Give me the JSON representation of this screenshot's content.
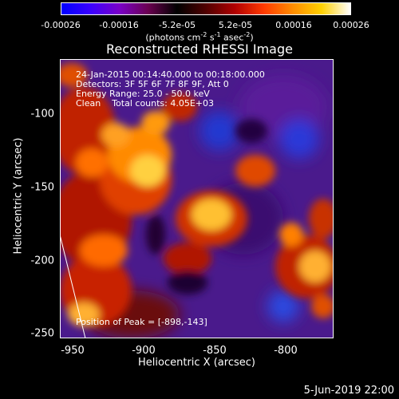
{
  "colorbar": {
    "ticks": [
      "-0.00026",
      "-0.00016",
      "-5.2e-05",
      "5.2e-05",
      "0.00016",
      "0.00026"
    ],
    "units_main": "(photons cm",
    "units_sup1": "-2",
    "units_mid1": " s",
    "units_sup2": "-1",
    "units_mid2": " asec",
    "units_sup3": "-2",
    "units_end": ")",
    "stops": [
      "#0000ff",
      "#3a00ff",
      "#7a00c8",
      "#6a0050",
      "#000000",
      "#500000",
      "#b00000",
      "#ff3a00",
      "#ff8c00",
      "#ffd000",
      "#ffffff"
    ]
  },
  "title": "Reconstructed RHESSI Image",
  "overlay": {
    "line1": "24-Jan-2015 00:14:40.000 to 00:18:00.000",
    "line2": "Detectors: 3F 5F 6F 7F 8F 9F, Att 0",
    "line3": "Energy Range: 25.0 - 50.0 keV",
    "line4": "Clean    Total counts: 4.05E+03",
    "peak": "Position of Peak = [-898,-143]"
  },
  "axes": {
    "xlabel": "Heliocentric X (arcsec)",
    "ylabel": "Heliocentric Y (arcsec)",
    "xticks": [
      "-950",
      "-900",
      "-850",
      "-800"
    ],
    "yticks": [
      "-100",
      "-150",
      "-200",
      "-250"
    ],
    "xlim": [
      -958,
      -768
    ],
    "ylim": [
      -253,
      -63
    ]
  },
  "footer": "5-Jun-2019 22:00"
}
